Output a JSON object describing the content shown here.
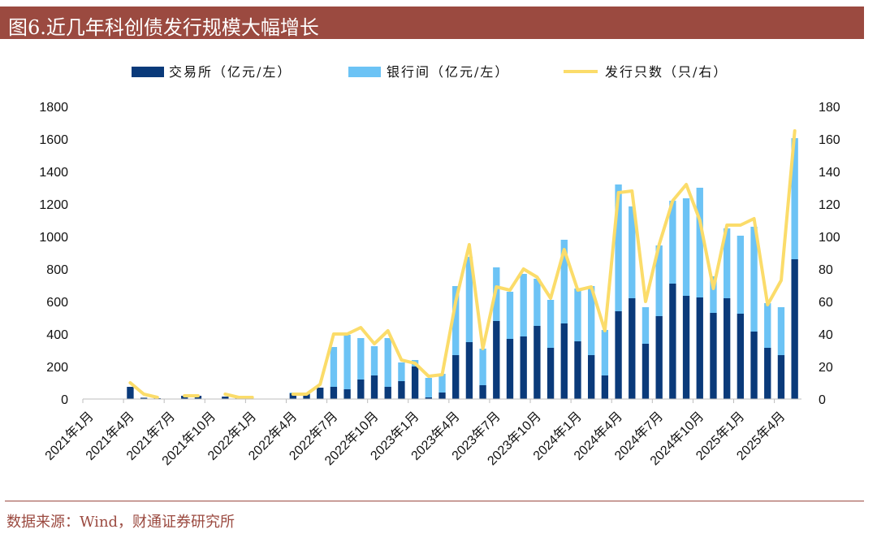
{
  "header": {
    "title": "图6.近几年科创债发行规模大幅增长"
  },
  "footer": {
    "source": "数据来源：Wind，财通证券研究所"
  },
  "colors": {
    "exchange": "#0a3a7a",
    "interbank": "#6cc3f5",
    "count_line": "#fbdc6a",
    "accent": "#9b4a40"
  },
  "chart_data": {
    "type": "bar+line",
    "x": [
      "2021年1月",
      "2021年2月",
      "2021年3月",
      "2021年4月",
      "2021年5月",
      "2021年6月",
      "2021年7月",
      "2021年8月",
      "2021年9月",
      "2021年10月",
      "2021年11月",
      "2021年12月",
      "2022年1月",
      "2022年2月",
      "2022年3月",
      "2022年4月",
      "2022年5月",
      "2022年6月",
      "2022年7月",
      "2022年8月",
      "2022年9月",
      "2022年10月",
      "2022年11月",
      "2022年12月",
      "2023年1月",
      "2023年2月",
      "2023年3月",
      "2023年4月",
      "2023年5月",
      "2023年6月",
      "2023年7月",
      "2023年8月",
      "2023年9月",
      "2023年10月",
      "2023年11月",
      "2023年12月",
      "2024年1月",
      "2024年2月",
      "2024年3月",
      "2024年4月",
      "2024年5月",
      "2024年6月",
      "2024年7月",
      "2024年8月",
      "2024年9月",
      "2024年10月",
      "2024年11月",
      "2024年12月",
      "2025年1月",
      "2025年2月",
      "2025年3月",
      "2025年4月",
      "2025年5月"
    ],
    "tick_labels": [
      "2021年1月",
      "2021年4月",
      "2021年7月",
      "2021年10月",
      "2022年1月",
      "2022年4月",
      "2022年7月",
      "2022年10月",
      "2023年1月",
      "2023年4月",
      "2023年7月",
      "2023年10月",
      "2024年1月",
      "2024年4月",
      "2024年7月",
      "2024年10月",
      "2025年1月",
      "2025年4月"
    ],
    "stacked": true,
    "series": [
      {
        "name": "交易所（亿元/左）",
        "kind": "bar",
        "axis": "left",
        "values": [
          0,
          0,
          0,
          75,
          8,
          5,
          0,
          20,
          20,
          0,
          15,
          5,
          0,
          0,
          0,
          35,
          40,
          70,
          75,
          60,
          120,
          145,
          75,
          110,
          200,
          10,
          40,
          270,
          350,
          85,
          480,
          370,
          385,
          450,
          315,
          465,
          355,
          270,
          145,
          540,
          620,
          340,
          510,
          710,
          635,
          625,
          530,
          620,
          525,
          415,
          315,
          270,
          860
        ]
      },
      {
        "name": "银行间（亿元/左）",
        "kind": "bar",
        "axis": "left",
        "values": [
          0,
          0,
          0,
          0,
          0,
          0,
          0,
          0,
          0,
          0,
          0,
          0,
          0,
          0,
          0,
          5,
          0,
          0,
          245,
          335,
          255,
          180,
          300,
          115,
          40,
          120,
          115,
          425,
          525,
          225,
          330,
          290,
          385,
          290,
          295,
          515,
          325,
          425,
          280,
          780,
          565,
          225,
          435,
          510,
          600,
          675,
          225,
          430,
          480,
          645,
          275,
          295,
          745
        ]
      },
      {
        "name": "发行只数（只/右）",
        "kind": "line",
        "axis": "right",
        "values": [
          null,
          null,
          null,
          10,
          3,
          1,
          null,
          2,
          2,
          null,
          3,
          1,
          1,
          null,
          null,
          3,
          3,
          9,
          40,
          40,
          44,
          34,
          42,
          24,
          22,
          14,
          15,
          60,
          95,
          31,
          69,
          67,
          80,
          75,
          62,
          92,
          67,
          69,
          42,
          127,
          128,
          60,
          95,
          122,
          132,
          110,
          68,
          107,
          107,
          111,
          58,
          73,
          165
        ]
      }
    ],
    "ylim_left": [
      0,
      1800
    ],
    "yticks_left": [
      0,
      200,
      400,
      600,
      800,
      1000,
      1200,
      1400,
      1600,
      1800
    ],
    "ylim_right": [
      0,
      180
    ],
    "yticks_right": [
      0,
      20,
      40,
      60,
      80,
      100,
      120,
      140,
      160,
      180
    ],
    "grid": false,
    "legend_position": "top"
  }
}
